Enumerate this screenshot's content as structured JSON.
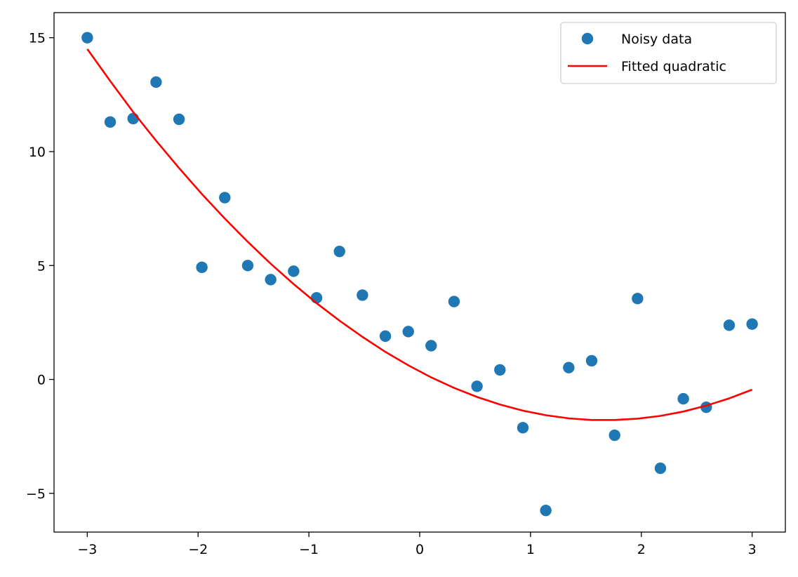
{
  "chart_data": {
    "type": "scatter",
    "title": "",
    "xlabel": "",
    "ylabel": "",
    "xlim": [
      -3.3,
      3.3
    ],
    "ylim": [
      -6.7,
      16.1
    ],
    "grid": false,
    "legend_position": "top-right",
    "x_ticks": [
      -3,
      -2,
      -1,
      0,
      1,
      2,
      3
    ],
    "x_tick_labels": [
      "−3",
      "−2",
      "−1",
      "0",
      "1",
      "2",
      "3"
    ],
    "y_ticks": [
      -5,
      0,
      5,
      10,
      15
    ],
    "y_tick_labels": [
      "−5",
      "0",
      "5",
      "10",
      "15"
    ],
    "series": [
      {
        "name": "Noisy data",
        "kind": "scatter",
        "color": "#1f77b4",
        "x": [
          -3.0,
          -2.793,
          -2.586,
          -2.379,
          -2.172,
          -1.966,
          -1.759,
          -1.552,
          -1.345,
          -1.138,
          -0.931,
          -0.724,
          -0.517,
          -0.31,
          -0.103,
          0.103,
          0.31,
          0.517,
          0.724,
          0.931,
          1.138,
          1.345,
          1.552,
          1.759,
          1.966,
          2.172,
          2.379,
          2.586,
          2.793,
          3.0
        ],
        "y": [
          15.0,
          11.3,
          11.45,
          13.05,
          11.42,
          4.92,
          7.98,
          5.0,
          4.38,
          4.75,
          3.58,
          5.62,
          3.7,
          1.9,
          2.1,
          1.48,
          3.42,
          -0.3,
          0.42,
          -2.12,
          -5.75,
          0.52,
          0.82,
          -2.45,
          3.55,
          -3.9,
          -0.85,
          -1.22,
          2.38,
          2.43
        ]
      },
      {
        "name": "Fitted quadratic",
        "kind": "line",
        "color": "#ff0000",
        "x": [
          -3.0,
          -2.793,
          -2.586,
          -2.379,
          -2.172,
          -1.966,
          -1.759,
          -1.552,
          -1.345,
          -1.138,
          -0.931,
          -0.724,
          -0.517,
          -0.31,
          -0.103,
          0.103,
          0.31,
          0.517,
          0.724,
          0.931,
          1.138,
          1.345,
          1.552,
          1.759,
          1.966,
          2.172,
          2.379,
          2.586,
          2.793,
          3.0
        ],
        "y": [
          14.5,
          13.1,
          11.74,
          10.48,
          9.28,
          8.14,
          7.06,
          6.04,
          5.08,
          4.19,
          3.35,
          2.58,
          1.87,
          1.21,
          0.62,
          0.09,
          -0.37,
          -0.77,
          -1.1,
          -1.37,
          -1.57,
          -1.71,
          -1.78,
          -1.78,
          -1.72,
          -1.6,
          -1.41,
          -1.15,
          -0.83,
          -0.45
        ]
      }
    ]
  }
}
